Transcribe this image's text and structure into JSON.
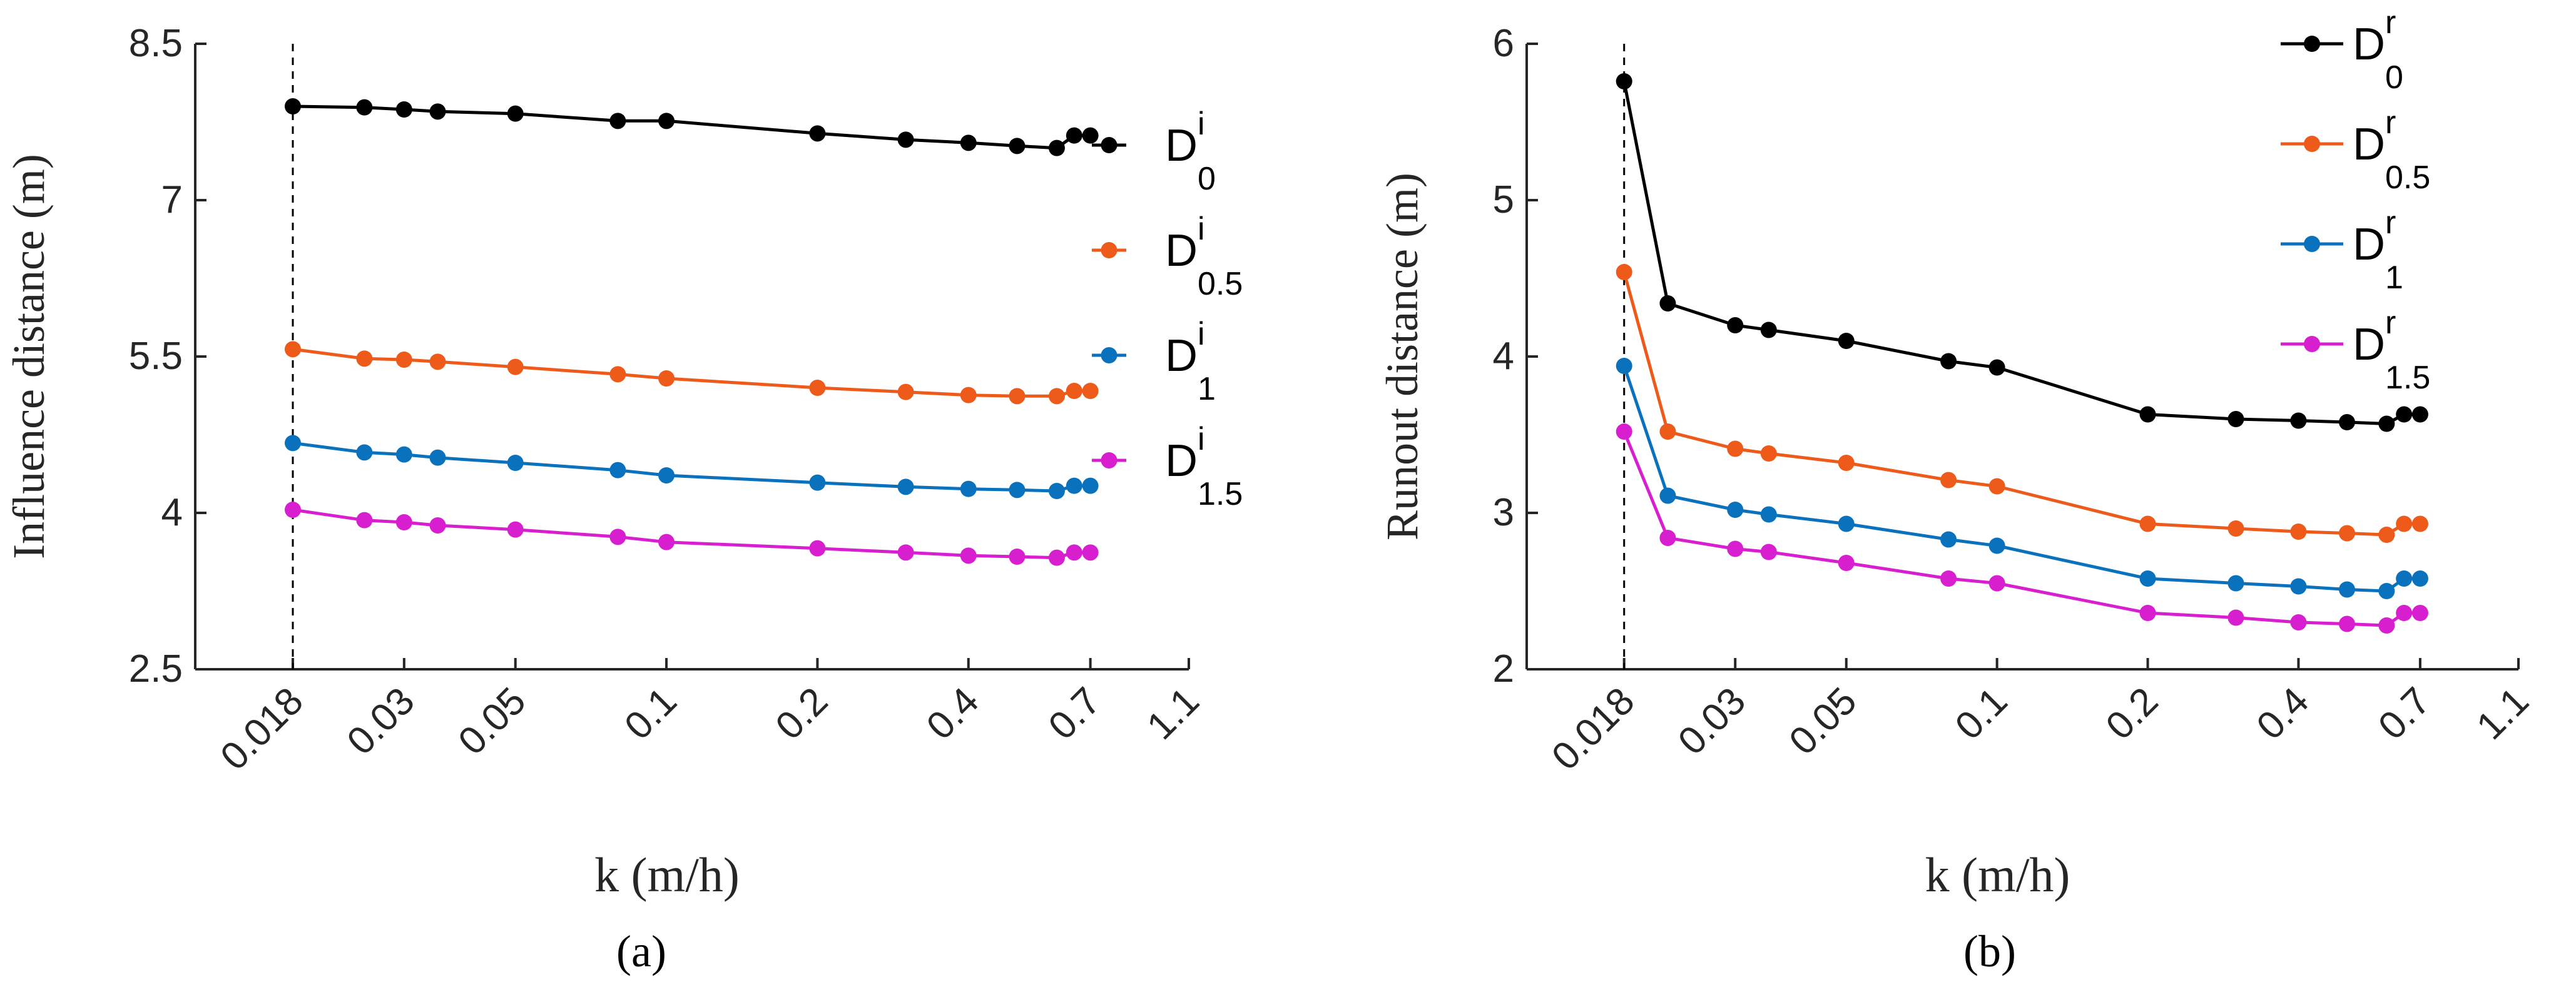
{
  "colors": {
    "D0": "#000000",
    "D05": "#ed5a1a",
    "D1": "#0a72bd",
    "D15": "#d81fd0",
    "axis": "#262626"
  },
  "chart_data": [
    {
      "panel": "a",
      "type": "line",
      "caption": "(a)",
      "xlabel": "k (m/h)",
      "ylabel": "Influence distance (m)",
      "x_scale": "log",
      "xlim": [
        0.0115,
        1.1
      ],
      "ylim": [
        2.5,
        8.5
      ],
      "yticks": [
        2.5,
        4,
        5.5,
        7,
        8.5
      ],
      "ytick_labels": [
        "2.5",
        "4",
        "5.5",
        "7",
        "8.5"
      ],
      "xticks": [
        0.018,
        0.03,
        0.05,
        0.1,
        0.2,
        0.4,
        0.7,
        1.1
      ],
      "xtick_labels": [
        "0.018",
        "0.03",
        "0.05",
        "0.1",
        "0.2",
        "0.4",
        "0.7",
        "1.1"
      ],
      "reference_line_x": 0.018,
      "legend_placement": "right",
      "x": [
        0.018,
        0.025,
        0.03,
        0.035,
        0.05,
        0.08,
        0.1,
        0.2,
        0.3,
        0.4,
        0.5,
        0.6,
        0.65,
        0.7
      ],
      "series": [
        {
          "name": "D0i",
          "base": "D",
          "sup": "i",
          "sub": "0",
          "color_key": "D0",
          "values": [
            7.9,
            7.89,
            7.87,
            7.85,
            7.83,
            7.76,
            7.76,
            7.64,
            7.58,
            7.55,
            7.52,
            7.5,
            7.62,
            7.62
          ]
        },
        {
          "name": "D0.5i",
          "base": "D",
          "sup": "i",
          "sub": "0.5",
          "color_key": "D05",
          "values": [
            5.57,
            5.48,
            5.47,
            5.45,
            5.4,
            5.33,
            5.29,
            5.2,
            5.16,
            5.13,
            5.12,
            5.12,
            5.17,
            5.17
          ]
        },
        {
          "name": "D1i",
          "base": "D",
          "sup": "i",
          "sub": "1",
          "color_key": "D1",
          "values": [
            4.67,
            4.58,
            4.56,
            4.53,
            4.48,
            4.41,
            4.36,
            4.29,
            4.25,
            4.23,
            4.22,
            4.21,
            4.26,
            4.26
          ]
        },
        {
          "name": "D1.5i",
          "base": "D",
          "sup": "i",
          "sub": "1.5",
          "color_key": "D15",
          "values": [
            4.03,
            3.93,
            3.91,
            3.88,
            3.84,
            3.77,
            3.72,
            3.66,
            3.62,
            3.59,
            3.58,
            3.57,
            3.62,
            3.62
          ]
        }
      ]
    },
    {
      "panel": "b",
      "type": "line",
      "caption": "(b)",
      "xlabel": "k (m/h)",
      "ylabel": "Runout distance (m)",
      "x_scale": "log",
      "xlim": [
        0.0115,
        1.1
      ],
      "ylim": [
        2,
        6
      ],
      "yticks": [
        2,
        3,
        4,
        5,
        6
      ],
      "ytick_labels": [
        "2",
        "3",
        "4",
        "5",
        "6"
      ],
      "xticks": [
        0.018,
        0.03,
        0.05,
        0.1,
        0.2,
        0.4,
        0.7,
        1.1
      ],
      "xtick_labels": [
        "0.018",
        "0.03",
        "0.05",
        "0.1",
        "0.2",
        "0.4",
        "0.7",
        "1.1"
      ],
      "reference_line_x": 0.018,
      "legend_placement": "top-right",
      "x": [
        0.018,
        0.022,
        0.03,
        0.035,
        0.05,
        0.08,
        0.1,
        0.2,
        0.3,
        0.4,
        0.5,
        0.6,
        0.65,
        0.7
      ],
      "series": [
        {
          "name": "D0r",
          "base": "D",
          "sup": "r",
          "sub": "0",
          "color_key": "D0",
          "values": [
            5.76,
            4.34,
            4.2,
            4.17,
            4.1,
            3.97,
            3.93,
            3.63,
            3.6,
            3.59,
            3.58,
            3.57,
            3.63,
            3.63
          ]
        },
        {
          "name": "D0.5r",
          "base": "D",
          "sup": "r",
          "sub": "0.5",
          "color_key": "D05",
          "values": [
            4.54,
            3.52,
            3.41,
            3.38,
            3.32,
            3.21,
            3.17,
            2.93,
            2.9,
            2.88,
            2.87,
            2.86,
            2.93,
            2.93
          ]
        },
        {
          "name": "D1r",
          "base": "D",
          "sup": "r",
          "sub": "1",
          "color_key": "D1",
          "values": [
            3.94,
            3.11,
            3.02,
            2.99,
            2.93,
            2.83,
            2.79,
            2.58,
            2.55,
            2.53,
            2.51,
            2.5,
            2.58,
            2.58
          ]
        },
        {
          "name": "D1.5r",
          "base": "D",
          "sup": "r",
          "sub": "1.5",
          "color_key": "D15",
          "values": [
            3.52,
            2.84,
            2.77,
            2.75,
            2.68,
            2.58,
            2.55,
            2.36,
            2.33,
            2.3,
            2.29,
            2.28,
            2.36,
            2.36
          ]
        }
      ]
    }
  ]
}
